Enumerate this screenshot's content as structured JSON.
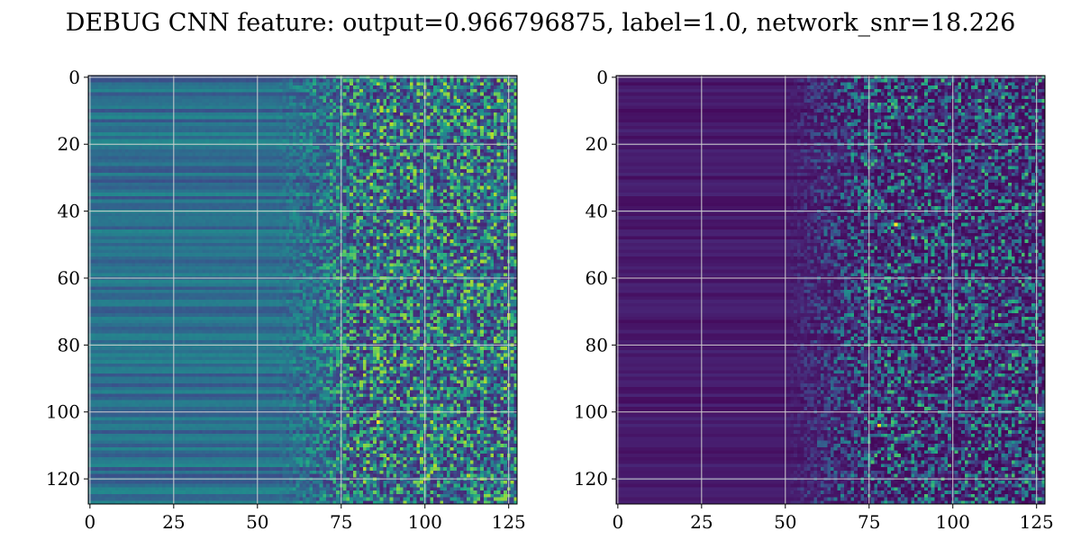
{
  "figure": {
    "title": "DEBUG CNN feature: output=0.966796875, label=1.0, network_snr=18.226"
  },
  "chart_data": [
    {
      "type": "heatmap",
      "colormap": "viridis",
      "rows": 128,
      "cols": 128,
      "xlim": [
        -0.5,
        127.5
      ],
      "ylim": [
        127.5,
        -0.5
      ],
      "xticks": [
        0,
        25,
        50,
        75,
        100,
        125
      ],
      "yticks": [
        0,
        20,
        40,
        60,
        80,
        100,
        120
      ],
      "grid": true,
      "description_of_values": "normalized 0-1 intensity; smooth horizontal bands (mid-blue ~0.25-0.45) for columns 0-55, noisy speckle (0.1-0.9) for columns 60-127",
      "hotspots": [
        {
          "row": 103,
          "col": 86,
          "value": 1.0
        },
        {
          "row": 68,
          "col": 82,
          "value": 0.85
        },
        {
          "row": 65,
          "col": 116,
          "value": 0.8
        },
        {
          "row": 42,
          "col": 81,
          "value": 0.8
        },
        {
          "row": 2,
          "col": 99,
          "value": 0.75
        }
      ]
    },
    {
      "type": "heatmap",
      "colormap": "viridis",
      "rows": 128,
      "cols": 128,
      "xlim": [
        -0.5,
        127.5
      ],
      "ylim": [
        127.5,
        -0.5
      ],
      "xticks": [
        0,
        25,
        50,
        75,
        100,
        125
      ],
      "yticks": [
        0,
        20,
        40,
        60,
        80,
        100,
        120
      ],
      "grid": true,
      "description_of_values": "normalized 0-1 intensity; dark purple (~0.0-0.1) for columns 0-50, sparse bright speckle (0.1-0.7) for columns 55-127",
      "hotspots": [
        {
          "row": 44,
          "col": 83,
          "value": 1.0
        },
        {
          "row": 104,
          "col": 78,
          "value": 0.95
        },
        {
          "row": 48,
          "col": 88,
          "value": 0.8
        },
        {
          "row": 25,
          "col": 86,
          "value": 0.7
        }
      ]
    }
  ]
}
